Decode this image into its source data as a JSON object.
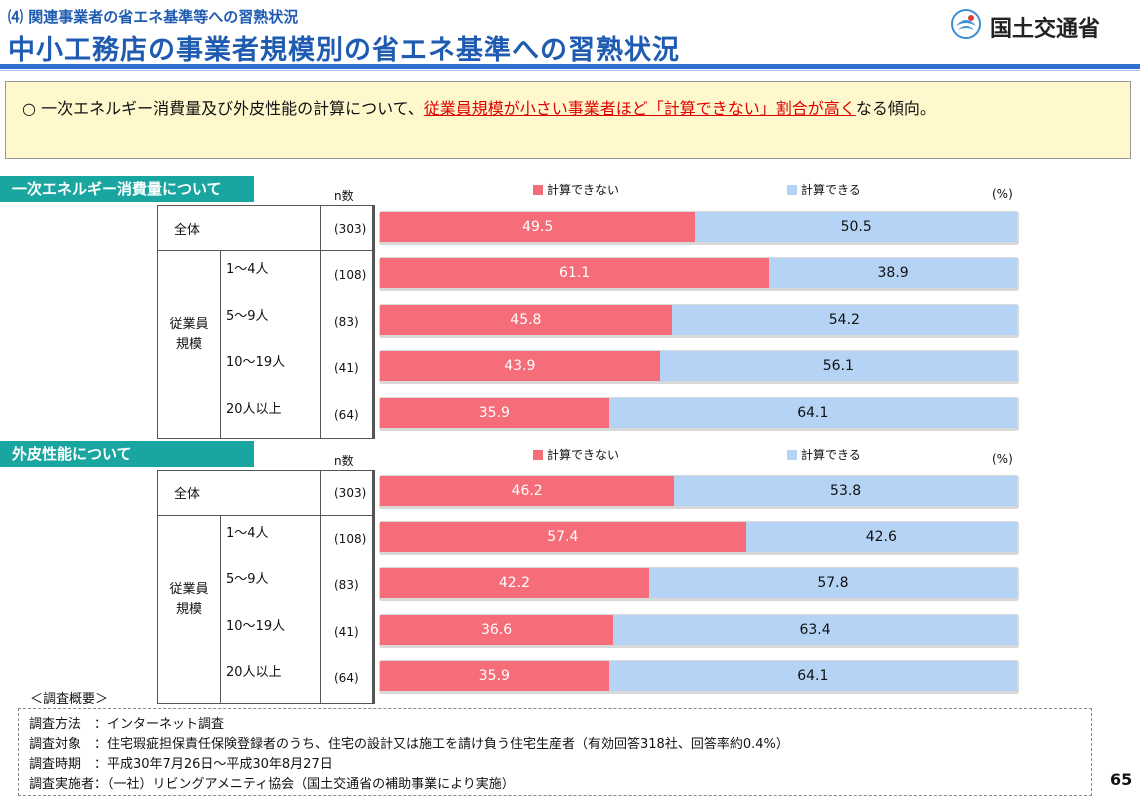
{
  "header": {
    "subtitle": "⑷ 関連事業者の省エネ基準等への習熟状況",
    "title": "中小工務店の事業者規模別の省エネ基準への習熟状況",
    "logo_text": "国土交通省"
  },
  "summary": {
    "bullet": "○",
    "text_before": "一次エネルギー消費量及び外皮性能の計算について、",
    "text_highlight": "従業員規模が小さい事業者ほど「計算できない」割合が高く",
    "text_after": "なる傾向。"
  },
  "colors": {
    "cannot": "#f56d78",
    "can": "#b4d3f5",
    "title": "#1f5bb0",
    "section": "#1aa6a0"
  },
  "chart_data": [
    {
      "type": "bar",
      "stacked": true,
      "orientation": "horizontal",
      "section_label": "一次エネルギー消費量について",
      "n_header": "n数",
      "unit": "(%)",
      "group_label": "従業員規模",
      "categories": [
        "全体",
        "1～4人",
        "5～9人",
        "10～19人",
        "20人以上"
      ],
      "n": [
        "(303)",
        "(108)",
        "(83)",
        "(41)",
        "(64)"
      ],
      "series": [
        {
          "name": "計算できない",
          "color": "#f56d78",
          "values": [
            49.5,
            61.1,
            45.8,
            43.9,
            35.9
          ]
        },
        {
          "name": "計算できる",
          "color": "#b4d3f5",
          "values": [
            50.5,
            38.9,
            54.2,
            56.1,
            64.1
          ]
        }
      ],
      "xlim": [
        0,
        100
      ]
    },
    {
      "type": "bar",
      "stacked": true,
      "orientation": "horizontal",
      "section_label": "外皮性能について",
      "n_header": "n数",
      "unit": "(%)",
      "group_label": "従業員規模",
      "categories": [
        "全体",
        "1～4人",
        "5～9人",
        "10～19人",
        "20人以上"
      ],
      "n": [
        "(303)",
        "(108)",
        "(83)",
        "(41)",
        "(64)"
      ],
      "series": [
        {
          "name": "計算できない",
          "color": "#f56d78",
          "values": [
            46.2,
            57.4,
            42.2,
            36.6,
            35.9
          ]
        },
        {
          "name": "計算できる",
          "color": "#b4d3f5",
          "values": [
            53.8,
            42.6,
            57.8,
            63.4,
            64.1
          ]
        }
      ],
      "xlim": [
        0,
        100
      ]
    }
  ],
  "survey": {
    "label": "＜調査概要＞",
    "lines": [
      "調査方法　：インターネット調査",
      "調査対象　：住宅瑕疵担保責任保険登録者のうち、住宅の設計又は施工を請け負う住宅生産者（有効回答318社、回答率約0.4%）",
      "調査時期　：平成30年7月26日～平成30年8月27日",
      "調査実施者：（一社）リビングアメニティ協会（国土交通省の補助事業により実施）"
    ]
  },
  "page_number": "65"
}
